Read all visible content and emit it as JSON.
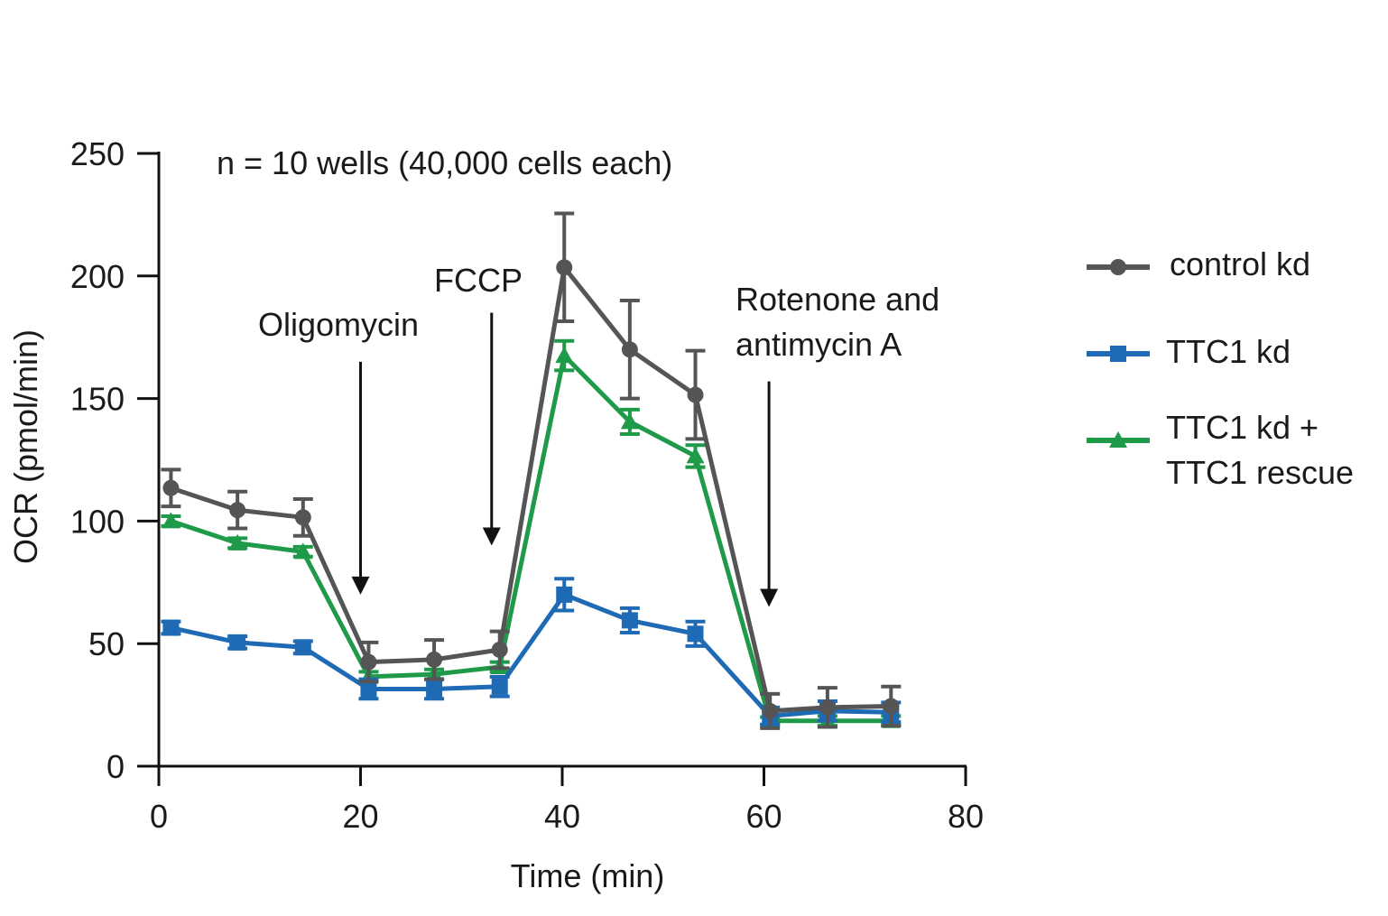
{
  "chart_data": {
    "type": "line",
    "title": "",
    "annotation_top": "n = 10 wells (40,000 cells each)",
    "xlabel": "Time (min)",
    "ylabel": "OCR (pmol/min)",
    "xlim": [
      0,
      80
    ],
    "ylim": [
      0,
      250
    ],
    "xticks": [
      0,
      20,
      40,
      60,
      80
    ],
    "yticks": [
      0,
      50,
      100,
      150,
      200,
      250
    ],
    "legend_position": "right",
    "injections": [
      {
        "name": "oligomycin",
        "label_lines": [
          "Oligomycin"
        ],
        "x": 20,
        "y_from": 165,
        "y_to": 70
      },
      {
        "name": "fccp",
        "label_lines": [
          "FCCP"
        ],
        "x": 33,
        "y_from": 185,
        "y_to": 90
      },
      {
        "name": "rotenone",
        "label_lines": [
          "Rotenone and",
          "antimycin A"
        ],
        "x": 60.5,
        "y_from": 157,
        "y_to": 65
      }
    ],
    "x": [
      1.2,
      7.8,
      14.3,
      20.8,
      27.3,
      33.8,
      40.2,
      46.7,
      53.2,
      60.6,
      66.3,
      72.6
    ],
    "series": [
      {
        "name": "control kd",
        "color": "#555555",
        "marker": "circle",
        "values": [
          113.5,
          104.5,
          101.5,
          42.5,
          43.5,
          47.5,
          203.5,
          170,
          151.5,
          22.5,
          24,
          24.5
        ],
        "errors": [
          7.5,
          7.5,
          7.5,
          8,
          8,
          7.5,
          22,
          20,
          18,
          7,
          8,
          8
        ]
      },
      {
        "name": "TTC1 kd",
        "color": "#1f6ab4",
        "marker": "square",
        "values": [
          56.5,
          50.5,
          48.5,
          31.5,
          31.5,
          32.5,
          70,
          59.5,
          54,
          20.5,
          22.5,
          22
        ],
        "errors": [
          2.5,
          2.5,
          2.5,
          4,
          4,
          4,
          6.5,
          5,
          5,
          3.5,
          4,
          4
        ]
      },
      {
        "name": "TTC1 kd + TTC1 rescue",
        "label_lines": [
          "TTC1 kd +",
          "TTC1 rescue"
        ],
        "color": "#1e9a48",
        "marker": "triangle",
        "values": [
          100,
          91,
          87.5,
          36.5,
          37.5,
          40.5,
          167.5,
          140.5,
          126.5,
          18.5,
          18.5,
          18.5
        ],
        "errors": [
          2,
          2,
          2,
          2,
          2,
          2,
          6,
          5,
          4.5,
          1.5,
          2,
          2
        ]
      }
    ]
  }
}
